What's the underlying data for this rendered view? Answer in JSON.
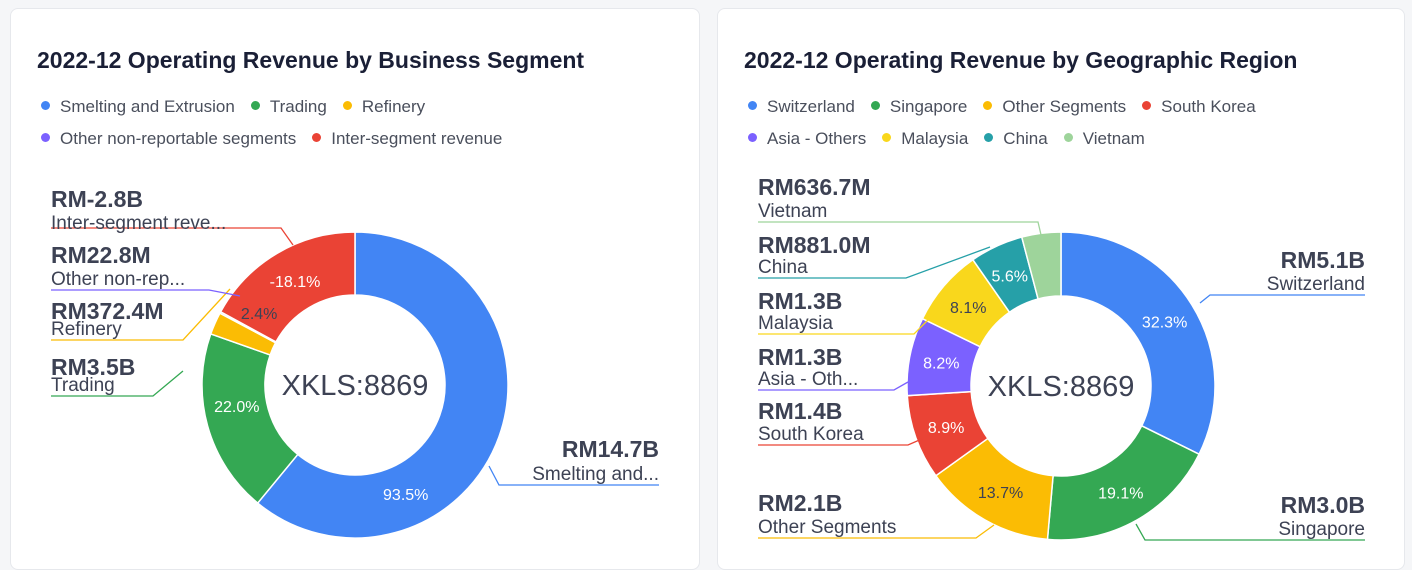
{
  "chart_data": [
    {
      "type": "pie",
      "title": "2022-12 Operating Revenue by Business Segment",
      "center_text": "XKLS:8869",
      "legend_rows": [
        [
          "Smelting and Extrusion",
          "Trading",
          "Refinery"
        ],
        [
          "Other non-reportable segments",
          "Inter-segment revenue"
        ]
      ],
      "slices": [
        {
          "name": "Smelting and Extrusion",
          "value": 14.7,
          "unit": "B",
          "percent": 93.5,
          "pct_label": "93.5%",
          "value_label": "RM14.7B",
          "name_label": "Smelting and...",
          "color": "#4285f4"
        },
        {
          "name": "Trading",
          "value": 3.5,
          "unit": "B",
          "percent": 22.0,
          "pct_label": "22.0%",
          "value_label": "RM3.5B",
          "name_label": "Trading",
          "color": "#34a853"
        },
        {
          "name": "Refinery",
          "value": 372.4,
          "unit": "M",
          "percent": 2.4,
          "pct_label": "2.4%",
          "value_label": "RM372.4M",
          "name_label": "Refinery",
          "color": "#fbbc04"
        },
        {
          "name": "Other non-reportable segments",
          "value": 22.8,
          "unit": "M",
          "percent": 0.1,
          "pct_label": "",
          "value_label": "RM22.8M",
          "name_label": "Other non-rep...",
          "color": "#7b61ff"
        },
        {
          "name": "Inter-segment revenue",
          "value": -2.8,
          "unit": "B",
          "percent": -18.1,
          "pct_label": "-18.1%",
          "value_label": "RM-2.8B",
          "name_label": "Inter-segment reve...",
          "color": "#ea4335"
        }
      ]
    },
    {
      "type": "pie",
      "title": "2022-12 Operating Revenue by Geographic Region",
      "center_text": "XKLS:8869",
      "legend_rows": [
        [
          "Switzerland",
          "Singapore",
          "Other Segments",
          "South Korea"
        ],
        [
          "Asia - Others",
          "Malaysia",
          "China",
          "Vietnam"
        ]
      ],
      "slices": [
        {
          "name": "Switzerland",
          "value": 5.1,
          "unit": "B",
          "percent": 32.3,
          "pct_label": "32.3%",
          "value_label": "RM5.1B",
          "name_label": "Switzerland",
          "color": "#4285f4"
        },
        {
          "name": "Singapore",
          "value": 3.0,
          "unit": "B",
          "percent": 19.1,
          "pct_label": "19.1%",
          "value_label": "RM3.0B",
          "name_label": "Singapore",
          "color": "#34a853"
        },
        {
          "name": "Other Segments",
          "value": 2.1,
          "unit": "B",
          "percent": 13.7,
          "pct_label": "13.7%",
          "value_label": "RM2.1B",
          "name_label": "Other Segments",
          "color": "#fbbc04"
        },
        {
          "name": "South Korea",
          "value": 1.4,
          "unit": "B",
          "percent": 8.9,
          "pct_label": "8.9%",
          "value_label": "RM1.4B",
          "name_label": "South Korea",
          "color": "#ea4335"
        },
        {
          "name": "Asia - Others",
          "value": 1.3,
          "unit": "B",
          "percent": 8.2,
          "pct_label": "8.2%",
          "value_label": "RM1.3B",
          "name_label": "Asia - Oth...",
          "color": "#7b61ff"
        },
        {
          "name": "Malaysia",
          "value": 1.3,
          "unit": "B",
          "percent": 8.1,
          "pct_label": "8.1%",
          "value_label": "RM1.3B",
          "name_label": "Malaysia",
          "color": "#f9d71c"
        },
        {
          "name": "China",
          "value": 881.0,
          "unit": "M",
          "percent": 5.6,
          "pct_label": "5.6%",
          "value_label": "RM881.0M",
          "name_label": "China",
          "color": "#26a0a8"
        },
        {
          "name": "Vietnam",
          "value": 636.7,
          "unit": "M",
          "percent": 4.1,
          "pct_label": "",
          "value_label": "RM636.7M",
          "name_label": "Vietnam",
          "color": "#9ed49b"
        }
      ]
    }
  ]
}
